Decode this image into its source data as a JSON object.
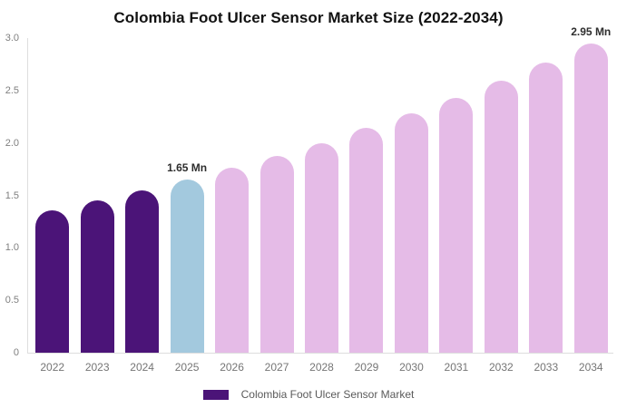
{
  "chart_data": {
    "type": "bar",
    "title": "Colombia Foot Ulcer Sensor Market Size (2022-2034)",
    "categories": [
      "2022",
      "2023",
      "2024",
      "2025",
      "2026",
      "2027",
      "2028",
      "2029",
      "2030",
      "2031",
      "2032",
      "2033",
      "2034"
    ],
    "values": [
      1.36,
      1.45,
      1.55,
      1.65,
      1.76,
      1.88,
      2.0,
      2.14,
      2.28,
      2.43,
      2.59,
      2.77,
      2.95
    ],
    "bar_colors": [
      "#4B1478",
      "#4B1478",
      "#4B1478",
      "#A3C9DE",
      "#E5BBE7",
      "#E5BBE7",
      "#E5BBE7",
      "#E5BBE7",
      "#E5BBE7",
      "#E5BBE7",
      "#E5BBE7",
      "#E5BBE7",
      "#E5BBE7"
    ],
    "annotations": [
      {
        "category": "2025",
        "label": "1.65 Mn"
      },
      {
        "category": "2034",
        "label": "2.95 Mn"
      }
    ],
    "yticks": [
      0,
      0.5,
      1,
      1.5,
      2,
      2.5,
      3
    ],
    "ytick_labels": [
      "0",
      "0.5",
      "1.0",
      "1.5",
      "2.0",
      "2.5",
      "3.0"
    ],
    "ylim": [
      0,
      3
    ],
    "xlabel": "",
    "ylabel": "",
    "grid": false,
    "legend": {
      "label": "Colombia Foot Ulcer Sensor Market",
      "swatch_color": "#4B1478",
      "position": "bottom-center"
    }
  }
}
